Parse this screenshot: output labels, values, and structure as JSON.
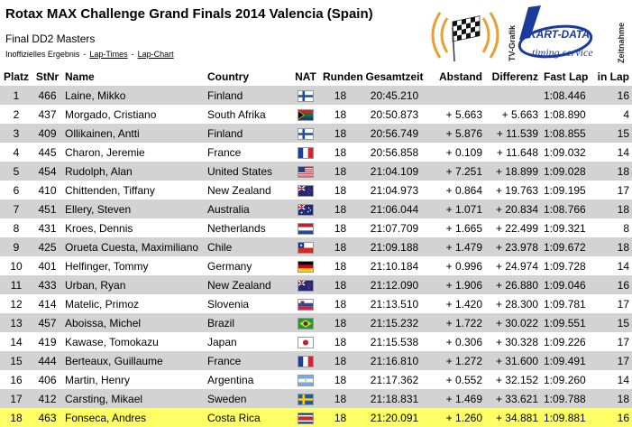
{
  "header": {
    "title": "Rotax MAX Challenge Grand Finals 2014 Valencia (Spain)",
    "subtitle": "Final DD2 Masters",
    "results_label": "Inoffizielles Ergebnis",
    "link_laptimes": "Lap-Times",
    "link_lapchart": "Lap-Chart",
    "separator": "-"
  },
  "logo": {
    "brand": "KART-DATA",
    "tagline": "timing service",
    "side_left": "TV-Grafik",
    "side_right": "Zeitnahme"
  },
  "columns": {
    "platz": "Platz",
    "stnr": "StNr",
    "name": "Name",
    "country": "Country",
    "nat": "NAT",
    "runden": "Runden",
    "gesamtzeit": "Gesamtzeit",
    "abstand": "Abstand",
    "differenz": "Differenz",
    "fastlap": "Fast Lap",
    "inlap": "in Lap"
  },
  "rows": [
    {
      "platz": "1",
      "stnr": "466",
      "name": "Laine, Mikko",
      "country": "Finland",
      "flag": "fi",
      "runden": "18",
      "gesamt": "20:45.210",
      "abstand": "",
      "differenz": "",
      "fastlap": "1:08.446",
      "inlap": "16"
    },
    {
      "platz": "2",
      "stnr": "437",
      "name": "Morgado, Cristiano",
      "country": "South Afrika",
      "flag": "za",
      "runden": "18",
      "gesamt": "20:50.873",
      "abstand": "+ 5.663",
      "differenz": "+ 5.663",
      "fastlap": "1:08.890",
      "inlap": "4"
    },
    {
      "platz": "3",
      "stnr": "409",
      "name": "Ollikainen, Antti",
      "country": "Finland",
      "flag": "fi",
      "runden": "18",
      "gesamt": "20:56.749",
      "abstand": "+ 5.876",
      "differenz": "+ 11.539",
      "fastlap": "1:08.855",
      "inlap": "15"
    },
    {
      "platz": "4",
      "stnr": "445",
      "name": "Charon, Jeremie",
      "country": "France",
      "flag": "fr",
      "runden": "18",
      "gesamt": "20:56.858",
      "abstand": "+ 0.109",
      "differenz": "+ 11.648",
      "fastlap": "1:09.032",
      "inlap": "14"
    },
    {
      "platz": "5",
      "stnr": "454",
      "name": "Rudolph, Alan",
      "country": "United States",
      "flag": "us",
      "runden": "18",
      "gesamt": "21:04.109",
      "abstand": "+ 7.251",
      "differenz": "+ 18.899",
      "fastlap": "1:09.028",
      "inlap": "18"
    },
    {
      "platz": "6",
      "stnr": "410",
      "name": "Chittenden, Tiffany",
      "country": "New Zealand",
      "flag": "nz",
      "runden": "18",
      "gesamt": "21:04.973",
      "abstand": "+ 0.864",
      "differenz": "+ 19.763",
      "fastlap": "1:09.195",
      "inlap": "17"
    },
    {
      "platz": "7",
      "stnr": "451",
      "name": "Ellery, Steven",
      "country": "Australia",
      "flag": "au",
      "runden": "18",
      "gesamt": "21:06.044",
      "abstand": "+ 1.071",
      "differenz": "+ 20.834",
      "fastlap": "1:08.766",
      "inlap": "18"
    },
    {
      "platz": "8",
      "stnr": "431",
      "name": "Kroes, Dennis",
      "country": "Netherlands",
      "flag": "nl",
      "runden": "18",
      "gesamt": "21:07.709",
      "abstand": "+ 1.665",
      "differenz": "+ 22.499",
      "fastlap": "1:09.321",
      "inlap": "8"
    },
    {
      "platz": "9",
      "stnr": "425",
      "name": "Orueta Cuesta, Maximiliano",
      "country": "Chile",
      "flag": "cl",
      "runden": "18",
      "gesamt": "21:09.188",
      "abstand": "+ 1.479",
      "differenz": "+ 23.978",
      "fastlap": "1:09.672",
      "inlap": "18"
    },
    {
      "platz": "10",
      "stnr": "401",
      "name": "Helfinger, Tommy",
      "country": "Germany",
      "flag": "de",
      "runden": "18",
      "gesamt": "21:10.184",
      "abstand": "+ 0.996",
      "differenz": "+ 24.974",
      "fastlap": "1:09.728",
      "inlap": "14"
    },
    {
      "platz": "11",
      "stnr": "433",
      "name": "Urban, Ryan",
      "country": "New Zealand",
      "flag": "nz",
      "runden": "18",
      "gesamt": "21:12.090",
      "abstand": "+ 1.906",
      "differenz": "+ 26.880",
      "fastlap": "1:09.046",
      "inlap": "16"
    },
    {
      "platz": "12",
      "stnr": "414",
      "name": "Matelic, Primoz",
      "country": "Slovenia",
      "flag": "si",
      "runden": "18",
      "gesamt": "21:13.510",
      "abstand": "+ 1.420",
      "differenz": "+ 28.300",
      "fastlap": "1:09.781",
      "inlap": "17"
    },
    {
      "platz": "13",
      "stnr": "457",
      "name": "Aboissa, Michel",
      "country": "Brazil",
      "flag": "br",
      "runden": "18",
      "gesamt": "21:15.232",
      "abstand": "+ 1.722",
      "differenz": "+ 30.022",
      "fastlap": "1:09.551",
      "inlap": "15"
    },
    {
      "platz": "14",
      "stnr": "419",
      "name": "Kawase, Tomokazu",
      "country": "Japan",
      "flag": "jp",
      "runden": "18",
      "gesamt": "21:15.538",
      "abstand": "+ 0.306",
      "differenz": "+ 30.328",
      "fastlap": "1:09.226",
      "inlap": "17"
    },
    {
      "platz": "15",
      "stnr": "444",
      "name": "Berteaux, Guillaume",
      "country": "France",
      "flag": "fr",
      "runden": "18",
      "gesamt": "21:16.810",
      "abstand": "+ 1.272",
      "differenz": "+ 31.600",
      "fastlap": "1:09.491",
      "inlap": "17"
    },
    {
      "platz": "16",
      "stnr": "406",
      "name": "Martin, Henry",
      "country": "Argentina",
      "flag": "ar",
      "runden": "18",
      "gesamt": "21:17.362",
      "abstand": "+ 0.552",
      "differenz": "+ 32.152",
      "fastlap": "1:09.260",
      "inlap": "14"
    },
    {
      "platz": "17",
      "stnr": "412",
      "name": "Carsting, Mikael",
      "country": "Sweden",
      "flag": "se",
      "runden": "18",
      "gesamt": "21:18.831",
      "abstand": "+ 1.469",
      "differenz": "+ 33.621",
      "fastlap": "1:09.788",
      "inlap": "18"
    },
    {
      "platz": "18",
      "stnr": "463",
      "name": "Fonseca, Andres",
      "country": "Costa Rica",
      "flag": "cr",
      "runden": "18",
      "gesamt": "21:20.091",
      "abstand": "+ 1.260",
      "differenz": "+ 34.881",
      "fastlap": "1:09.881",
      "inlap": "16",
      "highlight": true
    }
  ]
}
